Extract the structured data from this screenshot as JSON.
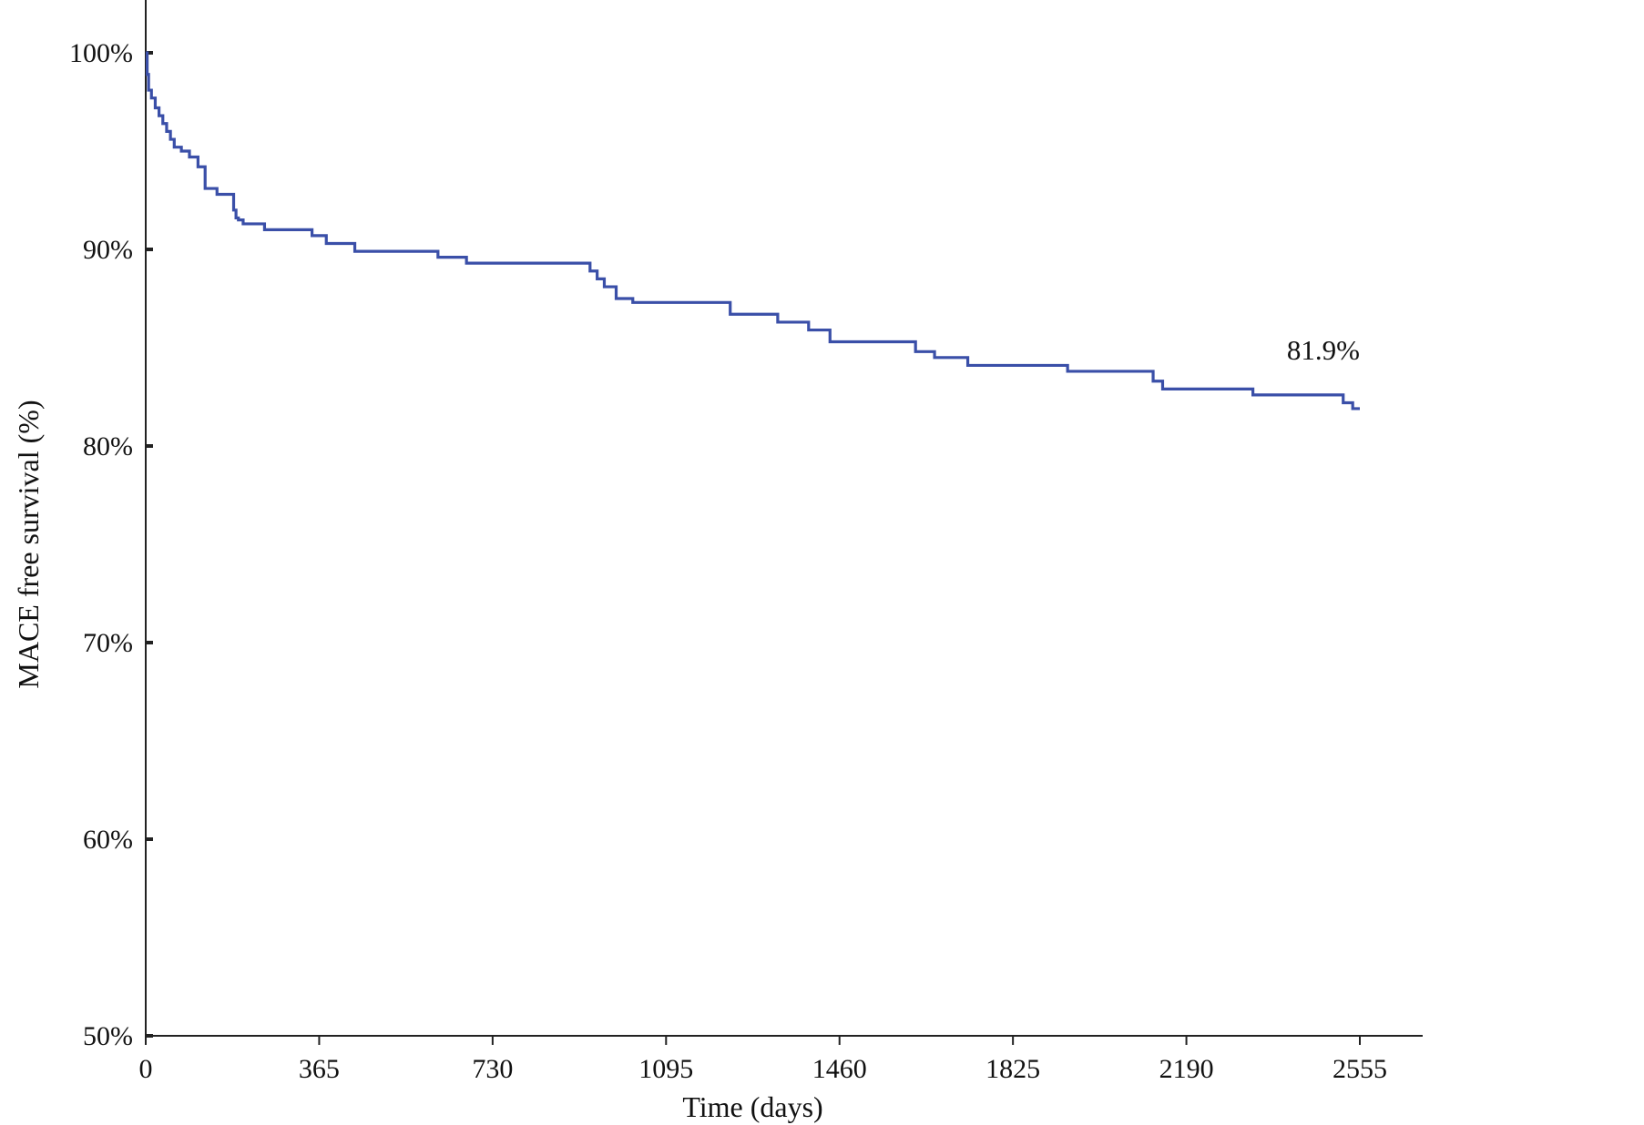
{
  "chart_data": {
    "type": "line",
    "title": "",
    "xlabel": "Time (days)",
    "ylabel": "MACE free survival (%)",
    "xlim": [
      0,
      2555
    ],
    "ylim": [
      50,
      100
    ],
    "x_ticks": [
      0,
      365,
      730,
      1095,
      1460,
      1825,
      2190,
      2555
    ],
    "x_tick_labels": [
      "0",
      "365",
      "730",
      "1095",
      "1460",
      "1825",
      "2190",
      "2555"
    ],
    "y_ticks": [
      50,
      60,
      70,
      80,
      90,
      100
    ],
    "y_tick_labels": [
      "50%",
      "60%",
      "70%",
      "80%",
      "90%",
      "100%"
    ],
    "grid": false,
    "legend": "none",
    "line_color": "#3a4fa8",
    "series": [
      {
        "step": true,
        "x": [
          0,
          3,
          6,
          12,
          20,
          28,
          36,
          44,
          52,
          60,
          75,
          92,
          110,
          125,
          150,
          185,
          190,
          195,
          205,
          250,
          350,
          380,
          440,
          615,
          675,
          935,
          950,
          965,
          990,
          1025,
          1230,
          1330,
          1395,
          1440,
          1620,
          1660,
          1730,
          1940,
          2120,
          2140,
          2330,
          2520,
          2540,
          2555
        ],
        "y": [
          100,
          98.9,
          98.1,
          97.7,
          97.2,
          96.8,
          96.4,
          96.0,
          95.6,
          95.2,
          95.0,
          94.7,
          94.2,
          93.1,
          92.8,
          92.0,
          91.6,
          91.5,
          91.3,
          91.0,
          90.7,
          90.3,
          89.9,
          89.6,
          89.3,
          88.9,
          88.5,
          88.1,
          87.5,
          87.3,
          86.7,
          86.3,
          85.9,
          85.3,
          84.8,
          84.5,
          84.1,
          83.8,
          83.3,
          82.9,
          82.6,
          82.2,
          81.9,
          81.9
        ]
      }
    ],
    "annotations": [
      {
        "text": "81.9%",
        "x": 2555,
        "y": 84.4
      }
    ]
  }
}
